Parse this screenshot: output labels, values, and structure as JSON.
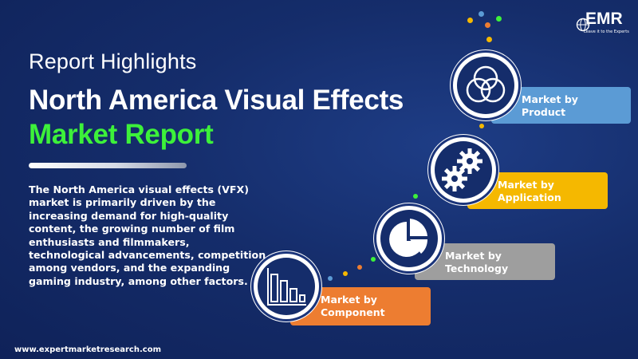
{
  "header": {
    "kicker": "Report Highlights",
    "title_line1": "North America Visual Effects",
    "title_line2": "Market Report"
  },
  "description": "The North America visual effects (VFX) market is primarily driven by the increasing demand for high-quality content, the growing number of film enthusiasts  and filmmakers, technological advancements, competition among vendors, and the expanding gaming industry, among other factors.",
  "logo": {
    "name": "EMR",
    "tagline": "Leave it to the Experts"
  },
  "footer": {
    "url": "www.expertmarketresearch.com"
  },
  "segments": [
    {
      "line1": "Market by",
      "line2": "Product",
      "color": "#5b9bd5",
      "icon": "venn-diagram-icon"
    },
    {
      "line1": "Market by",
      "line2": "Application",
      "color": "#f5b800",
      "icon": "gears-icon"
    },
    {
      "line1": "Market by",
      "line2": "Technology",
      "color": "#9e9e9e",
      "icon": "pie-chart-icon"
    },
    {
      "line1": "Market by",
      "line2": "Component",
      "color": "#ed7d31",
      "icon": "bar-chart-icon"
    }
  ],
  "colors": {
    "background": "#152d6b",
    "title_accent": "#3df13a"
  }
}
